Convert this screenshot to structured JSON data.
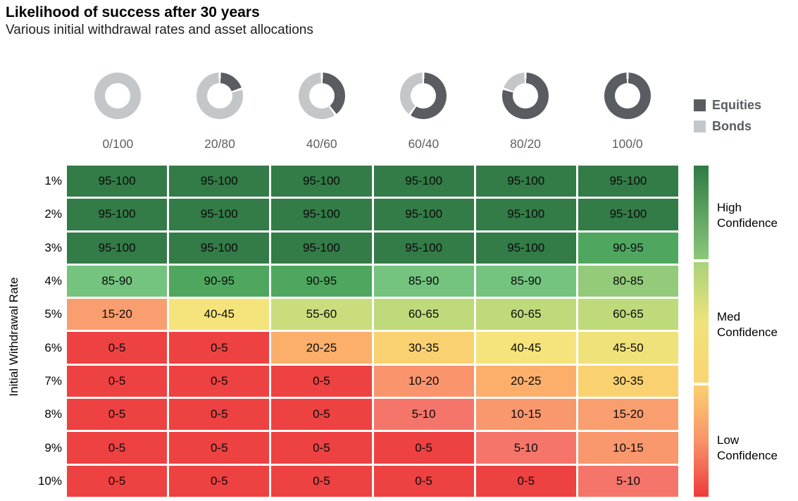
{
  "header": {
    "title": "Likelihood of success after 30 years",
    "subtitle": "Various initial withdrawal rates and asset allocations"
  },
  "legend": {
    "items": [
      {
        "label": "Equities",
        "color": "#595d61"
      },
      {
        "label": "Bonds",
        "color": "#c4c7c9"
      }
    ]
  },
  "chart_data": {
    "type": "heatmap",
    "title": "Likelihood of success after 30 years",
    "subtitle": "Various initial withdrawal rates and asset allocations",
    "ylabel": "Initial Withdrawal Rate",
    "columns": [
      "0/100",
      "20/80",
      "40/60",
      "60/40",
      "80/20",
      "100/0"
    ],
    "allocations": [
      {
        "label": "0/100",
        "equities_pct": 0,
        "bonds_pct": 100
      },
      {
        "label": "20/80",
        "equities_pct": 20,
        "bonds_pct": 80
      },
      {
        "label": "40/60",
        "equities_pct": 40,
        "bonds_pct": 60
      },
      {
        "label": "60/40",
        "equities_pct": 60,
        "bonds_pct": 40
      },
      {
        "label": "80/20",
        "equities_pct": 80,
        "bonds_pct": 20
      },
      {
        "label": "100/0",
        "equities_pct": 100,
        "bonds_pct": 0
      }
    ],
    "donut_colors": {
      "equities": "#595d61",
      "bonds": "#c4c7c9"
    },
    "rows": [
      "1%",
      "2%",
      "3%",
      "4%",
      "5%",
      "6%",
      "7%",
      "8%",
      "9%",
      "10%"
    ],
    "values": [
      [
        "95-100",
        "95-100",
        "95-100",
        "95-100",
        "95-100",
        "95-100"
      ],
      [
        "95-100",
        "95-100",
        "95-100",
        "95-100",
        "95-100",
        "95-100"
      ],
      [
        "95-100",
        "95-100",
        "95-100",
        "95-100",
        "95-100",
        "90-95"
      ],
      [
        "85-90",
        "90-95",
        "90-95",
        "85-90",
        "85-90",
        "80-85"
      ],
      [
        "15-20",
        "40-45",
        "55-60",
        "60-65",
        "60-65",
        "60-65"
      ],
      [
        "0-5",
        "0-5",
        "20-25",
        "30-35",
        "40-45",
        "45-50"
      ],
      [
        "0-5",
        "0-5",
        "0-5",
        "10-20",
        "20-25",
        "30-35"
      ],
      [
        "0-5",
        "0-5",
        "0-5",
        "5-10",
        "10-15",
        "15-20"
      ],
      [
        "0-5",
        "0-5",
        "0-5",
        "0-5",
        "5-10",
        "10-15"
      ],
      [
        "0-5",
        "0-5",
        "0-5",
        "0-5",
        "0-5",
        "5-10"
      ]
    ],
    "value_colors": {
      "95-100": "#337b47",
      "90-95": "#4fa75f",
      "85-90": "#74c37f",
      "80-85": "#94cb7b",
      "60-65": "#bfda7b",
      "55-60": "#cadd7c",
      "45-50": "#efe27b",
      "40-45": "#f4e47b",
      "30-35": "#fad171",
      "20-25": "#fbaf6b",
      "15-20": "#f99e6e",
      "10-20": "#f9946c",
      "10-15": "#f9976d",
      "5-10": "#f5756a",
      "0-5": "#ee4141"
    },
    "confidence_scale": [
      {
        "label": "High Confidence",
        "gradient": [
          "#2e7b44",
          "#8cc77b"
        ]
      },
      {
        "label": "Med Confidence",
        "gradient": [
          "#a9d37b",
          "#f0e27b",
          "#f9d572"
        ]
      },
      {
        "label": "Low Confidence",
        "gradient": [
          "#fbd06f",
          "#f8936a",
          "#ee3b3c"
        ]
      }
    ]
  }
}
